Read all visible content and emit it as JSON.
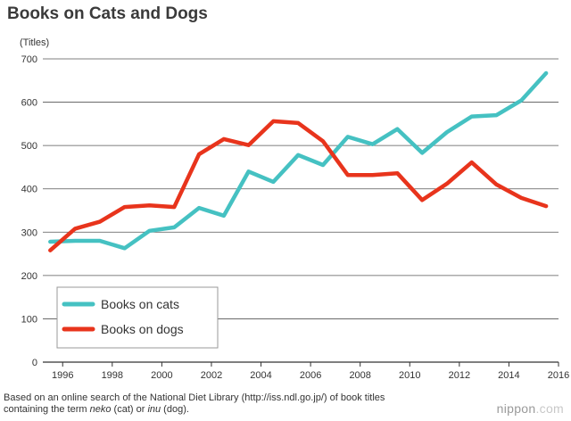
{
  "header": {
    "title": "Books on Cats and Dogs"
  },
  "chart_data": {
    "type": "line",
    "title": "Books on Cats and Dogs",
    "ylabel": "(Titles)",
    "xlabel": "",
    "ylim": [
      0,
      700
    ],
    "yticks": [
      0,
      100,
      200,
      300,
      400,
      500,
      600,
      700
    ],
    "xlim": [
      1995.2,
      2016
    ],
    "xticks": [
      1996,
      1998,
      2000,
      2002,
      2004,
      2006,
      2008,
      2010,
      2012,
      2014,
      2016
    ],
    "x": [
      1995.5,
      1996.5,
      1997.5,
      1998.5,
      1999.5,
      2000.5,
      2001.5,
      2002.5,
      2003.5,
      2004.5,
      2005.5,
      2006.5,
      2007.5,
      2008.5,
      2009.5,
      2010.5,
      2011.5,
      2012.5,
      2013.5,
      2014.5,
      2015.5
    ],
    "grid": true,
    "legend_position": "bottom-left",
    "series": [
      {
        "name": "Books on cats",
        "color": "#45c1c2",
        "values": [
          278,
          280,
          280,
          263,
          303,
          311,
          356,
          338,
          440,
          416,
          478,
          455,
          520,
          503,
          538,
          483,
          531,
          567,
          570,
          604,
          667
        ]
      },
      {
        "name": "Books on dogs",
        "color": "#e8341c",
        "values": [
          258,
          308,
          324,
          358,
          362,
          358,
          480,
          515,
          501,
          556,
          552,
          510,
          432,
          432,
          436,
          374,
          412,
          461,
          410,
          379,
          360
        ]
      }
    ]
  },
  "footer": {
    "note_before_neko": "Based on an online search of the National Diet Library (http://iss.ndl.go.jp/) of book titles containing the term ",
    "neko": "neko",
    "note_mid": " (cat) or ",
    "inu": "inu",
    "note_end": " (dog).",
    "brand_name": "nippon",
    "brand_suffix": ".com"
  }
}
